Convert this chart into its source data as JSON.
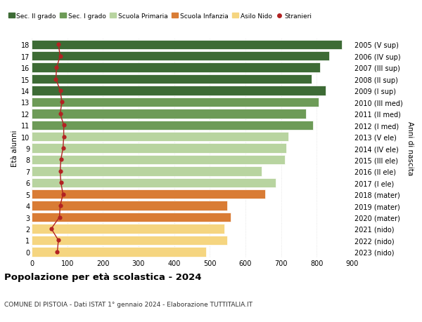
{
  "ages": [
    18,
    17,
    16,
    15,
    14,
    13,
    12,
    11,
    10,
    9,
    8,
    7,
    6,
    5,
    4,
    3,
    2,
    1,
    0
  ],
  "right_labels": [
    "2005 (V sup)",
    "2006 (IV sup)",
    "2007 (III sup)",
    "2008 (II sup)",
    "2009 (I sup)",
    "2010 (III med)",
    "2011 (II med)",
    "2012 (I med)",
    "2013 (V ele)",
    "2014 (IV ele)",
    "2015 (III ele)",
    "2016 (II ele)",
    "2017 (I ele)",
    "2018 (mater)",
    "2019 (mater)",
    "2020 (mater)",
    "2021 (nido)",
    "2022 (nido)",
    "2023 (nido)"
  ],
  "bar_values": [
    870,
    835,
    810,
    785,
    825,
    805,
    770,
    790,
    720,
    715,
    710,
    645,
    685,
    655,
    548,
    558,
    540,
    548,
    490
  ],
  "bar_colors": [
    "#3d6b35",
    "#3d6b35",
    "#3d6b35",
    "#3d6b35",
    "#3d6b35",
    "#6d9b57",
    "#6d9b57",
    "#6d9b57",
    "#b8d4a0",
    "#b8d4a0",
    "#b8d4a0",
    "#b8d4a0",
    "#b8d4a0",
    "#d97c35",
    "#d97c35",
    "#d97c35",
    "#f5d580",
    "#f5d580",
    "#f5d580"
  ],
  "stranieri_values": [
    75,
    80,
    70,
    68,
    80,
    85,
    80,
    90,
    90,
    88,
    82,
    80,
    82,
    88,
    80,
    78,
    55,
    75,
    72
  ],
  "legend_labels": [
    "Sec. II grado",
    "Sec. I grado",
    "Scuola Primaria",
    "Scuola Infanzia",
    "Asilo Nido",
    "Stranieri"
  ],
  "legend_colors": [
    "#3d6b35",
    "#6d9b57",
    "#b8d4a0",
    "#d97c35",
    "#f5d580",
    "#b22222"
  ],
  "title": "Popolazione per età scolastica - 2024",
  "subtitle": "COMUNE DI PISTOIA - Dati ISTAT 1° gennaio 2024 - Elaborazione TUTTITALIA.IT",
  "ylabel_left": "Età alunni",
  "ylabel_right": "Anni di nascita",
  "xlim": [
    0,
    900
  ],
  "xticks": [
    0,
    100,
    200,
    300,
    400,
    500,
    600,
    700,
    800,
    900
  ],
  "bg_color": "#ffffff",
  "grid_color": "#dddddd",
  "bar_edge_color": "white"
}
